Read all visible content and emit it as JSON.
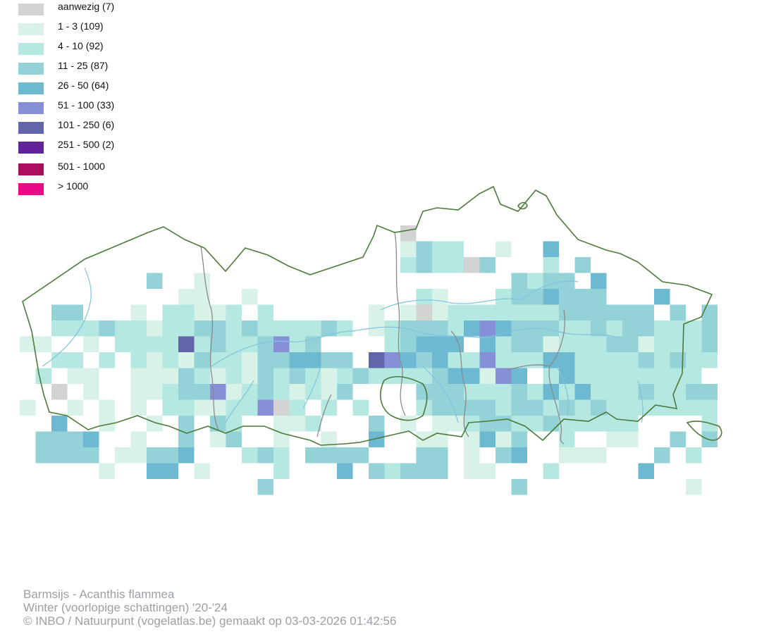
{
  "legend": {
    "items": [
      {
        "label": "aanwezig (7)",
        "color": "#d3d3d3"
      },
      {
        "label": "1 - 3 (109)",
        "color": "#d8f2e7"
      },
      {
        "label": "4 - 10 (92)",
        "color": "#b4e8e0"
      },
      {
        "label": "11 - 25 (87)",
        "color": "#93d2d6"
      },
      {
        "label": "26 - 50 (64)",
        "color": "#6db9d2"
      },
      {
        "label": "51 - 100 (33)",
        "color": "#8590d6"
      },
      {
        "label": "101 - 250 (6)",
        "color": "#6166ac"
      },
      {
        "label": "251 - 500 (2)",
        "color": "#62239a"
      },
      {
        "label": "501 - 1000",
        "color": "#ac0e5e"
      },
      {
        "label": "> 1000",
        "color": "#ea0a85"
      }
    ]
  },
  "colors": {
    "border": "#4b7a3c",
    "river": "#7fc3e0",
    "province": "#8a8a8a"
  },
  "caption": {
    "species": "Barmsijs - Acanthis flammea",
    "season": "Winter (voorlopige schattingen) '20-'24",
    "credit": "© INBO / Natuurpunt (vogelatlas.be) gemaakt op 03-03-2026 01:42:56"
  }
}
